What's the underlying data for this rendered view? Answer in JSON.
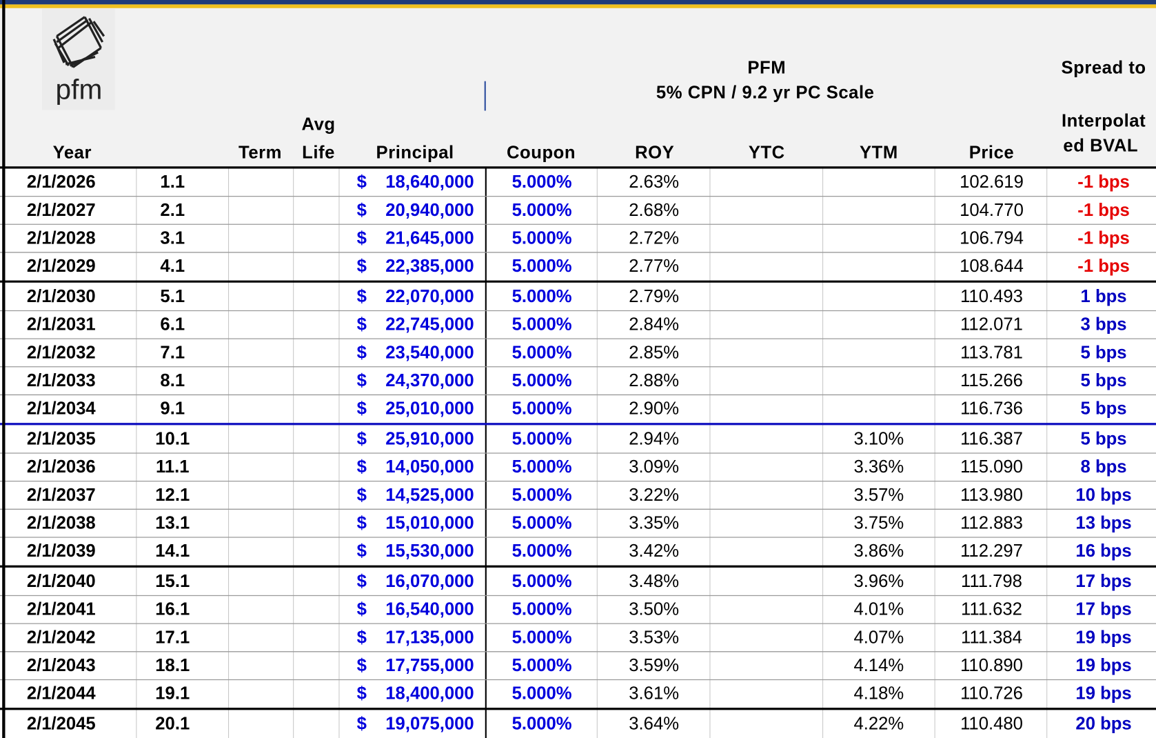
{
  "logo": {
    "text": "pfm"
  },
  "header": {
    "group_title": "PFM",
    "group_subtitle": "5% CPN / 9.2 yr PC Scale",
    "spread_title": "Spread to"
  },
  "columns": {
    "year": "Year",
    "term": "Term",
    "avg_life": [
      "Avg",
      "Life"
    ],
    "principal": "Principal",
    "coupon": "Coupon",
    "roy": "ROY",
    "ytc": "YTC",
    "ytm": "YTM",
    "price": "Price",
    "spread": [
      "Interpolat",
      "ed BVAL"
    ]
  },
  "colors": {
    "negative": "#e60000",
    "positive": "#0000c0",
    "input": "#0000dd"
  },
  "rows": [
    {
      "year": "2/1/2026",
      "life": "1.1",
      "currency": "$",
      "principal": "18,640,000",
      "coupon": "5.000%",
      "roy": "2.63%",
      "price": "102.619",
      "spread": "-1 bps",
      "tone": "negative"
    },
    {
      "year": "2/1/2027",
      "life": "2.1",
      "currency": "$",
      "principal": "20,940,000",
      "coupon": "5.000%",
      "roy": "2.68%",
      "price": "104.770",
      "spread": "-1 bps",
      "tone": "negative"
    },
    {
      "year": "2/1/2028",
      "life": "3.1",
      "currency": "$",
      "principal": "21,645,000",
      "coupon": "5.000%",
      "roy": "2.72%",
      "price": "106.794",
      "spread": "-1 bps",
      "tone": "negative"
    },
    {
      "year": "2/1/2029",
      "life": "4.1",
      "currency": "$",
      "principal": "22,385,000",
      "coupon": "5.000%",
      "roy": "2.77%",
      "price": "108.644",
      "spread": "-1 bps",
      "tone": "negative"
    },
    {
      "year": "2/1/2030",
      "life": "5.1",
      "currency": "$",
      "principal": "22,070,000",
      "coupon": "5.000%",
      "roy": "2.79%",
      "price": "110.493",
      "spread": "1 bps",
      "tone": "positive"
    },
    {
      "year": "2/1/2031",
      "life": "6.1",
      "currency": "$",
      "principal": "22,745,000",
      "coupon": "5.000%",
      "roy": "2.84%",
      "price": "112.071",
      "spread": "3 bps",
      "tone": "positive"
    },
    {
      "year": "2/1/2032",
      "life": "7.1",
      "currency": "$",
      "principal": "23,540,000",
      "coupon": "5.000%",
      "roy": "2.85%",
      "price": "113.781",
      "spread": "5 bps",
      "tone": "positive"
    },
    {
      "year": "2/1/2033",
      "life": "8.1",
      "currency": "$",
      "principal": "24,370,000",
      "coupon": "5.000%",
      "roy": "2.88%",
      "price": "115.266",
      "spread": "5 bps",
      "tone": "positive"
    },
    {
      "year": "2/1/2034",
      "life": "9.1",
      "currency": "$",
      "principal": "25,010,000",
      "coupon": "5.000%",
      "roy": "2.90%",
      "price": "116.736",
      "spread": "5 bps",
      "tone": "positive"
    },
    {
      "year": "2/1/2035",
      "life": "10.1",
      "currency": "$",
      "principal": "25,910,000",
      "coupon": "5.000%",
      "roy": "2.94%",
      "ytm": "3.10%",
      "price": "116.387",
      "spread": "5 bps",
      "tone": "positive"
    },
    {
      "year": "2/1/2036",
      "life": "11.1",
      "currency": "$",
      "principal": "14,050,000",
      "coupon": "5.000%",
      "roy": "3.09%",
      "ytm": "3.36%",
      "price": "115.090",
      "spread": "8 bps",
      "tone": "positive"
    },
    {
      "year": "2/1/2037",
      "life": "12.1",
      "currency": "$",
      "principal": "14,525,000",
      "coupon": "5.000%",
      "roy": "3.22%",
      "ytm": "3.57%",
      "price": "113.980",
      "spread": "10 bps",
      "tone": "positive"
    },
    {
      "year": "2/1/2038",
      "life": "13.1",
      "currency": "$",
      "principal": "15,010,000",
      "coupon": "5.000%",
      "roy": "3.35%",
      "ytm": "3.75%",
      "price": "112.883",
      "spread": "13 bps",
      "tone": "positive"
    },
    {
      "year": "2/1/2039",
      "life": "14.1",
      "currency": "$",
      "principal": "15,530,000",
      "coupon": "5.000%",
      "roy": "3.42%",
      "ytm": "3.86%",
      "price": "112.297",
      "spread": "16 bps",
      "tone": "positive"
    },
    {
      "year": "2/1/2040",
      "life": "15.1",
      "currency": "$",
      "principal": "16,070,000",
      "coupon": "5.000%",
      "roy": "3.48%",
      "ytm": "3.96%",
      "price": "111.798",
      "spread": "17 bps",
      "tone": "positive"
    },
    {
      "year": "2/1/2041",
      "life": "16.1",
      "currency": "$",
      "principal": "16,540,000",
      "coupon": "5.000%",
      "roy": "3.50%",
      "ytm": "4.01%",
      "price": "111.632",
      "spread": "17 bps",
      "tone": "positive"
    },
    {
      "year": "2/1/2042",
      "life": "17.1",
      "currency": "$",
      "principal": "17,135,000",
      "coupon": "5.000%",
      "roy": "3.53%",
      "ytm": "4.07%",
      "price": "111.384",
      "spread": "19 bps",
      "tone": "positive"
    },
    {
      "year": "2/1/2043",
      "life": "18.1",
      "currency": "$",
      "principal": "17,755,000",
      "coupon": "5.000%",
      "roy": "3.59%",
      "ytm": "4.14%",
      "price": "110.890",
      "spread": "19 bps",
      "tone": "positive"
    },
    {
      "year": "2/1/2044",
      "life": "19.1",
      "currency": "$",
      "principal": "18,400,000",
      "coupon": "5.000%",
      "roy": "3.61%",
      "ytm": "4.18%",
      "price": "110.726",
      "spread": "19 bps",
      "tone": "positive"
    },
    {
      "year": "2/1/2045",
      "life": "20.1",
      "currency": "$",
      "principal": "19,075,000",
      "coupon": "5.000%",
      "roy": "3.64%",
      "ytm": "4.22%",
      "price": "110.480",
      "spread": "20 bps",
      "tone": "positive"
    }
  ]
}
